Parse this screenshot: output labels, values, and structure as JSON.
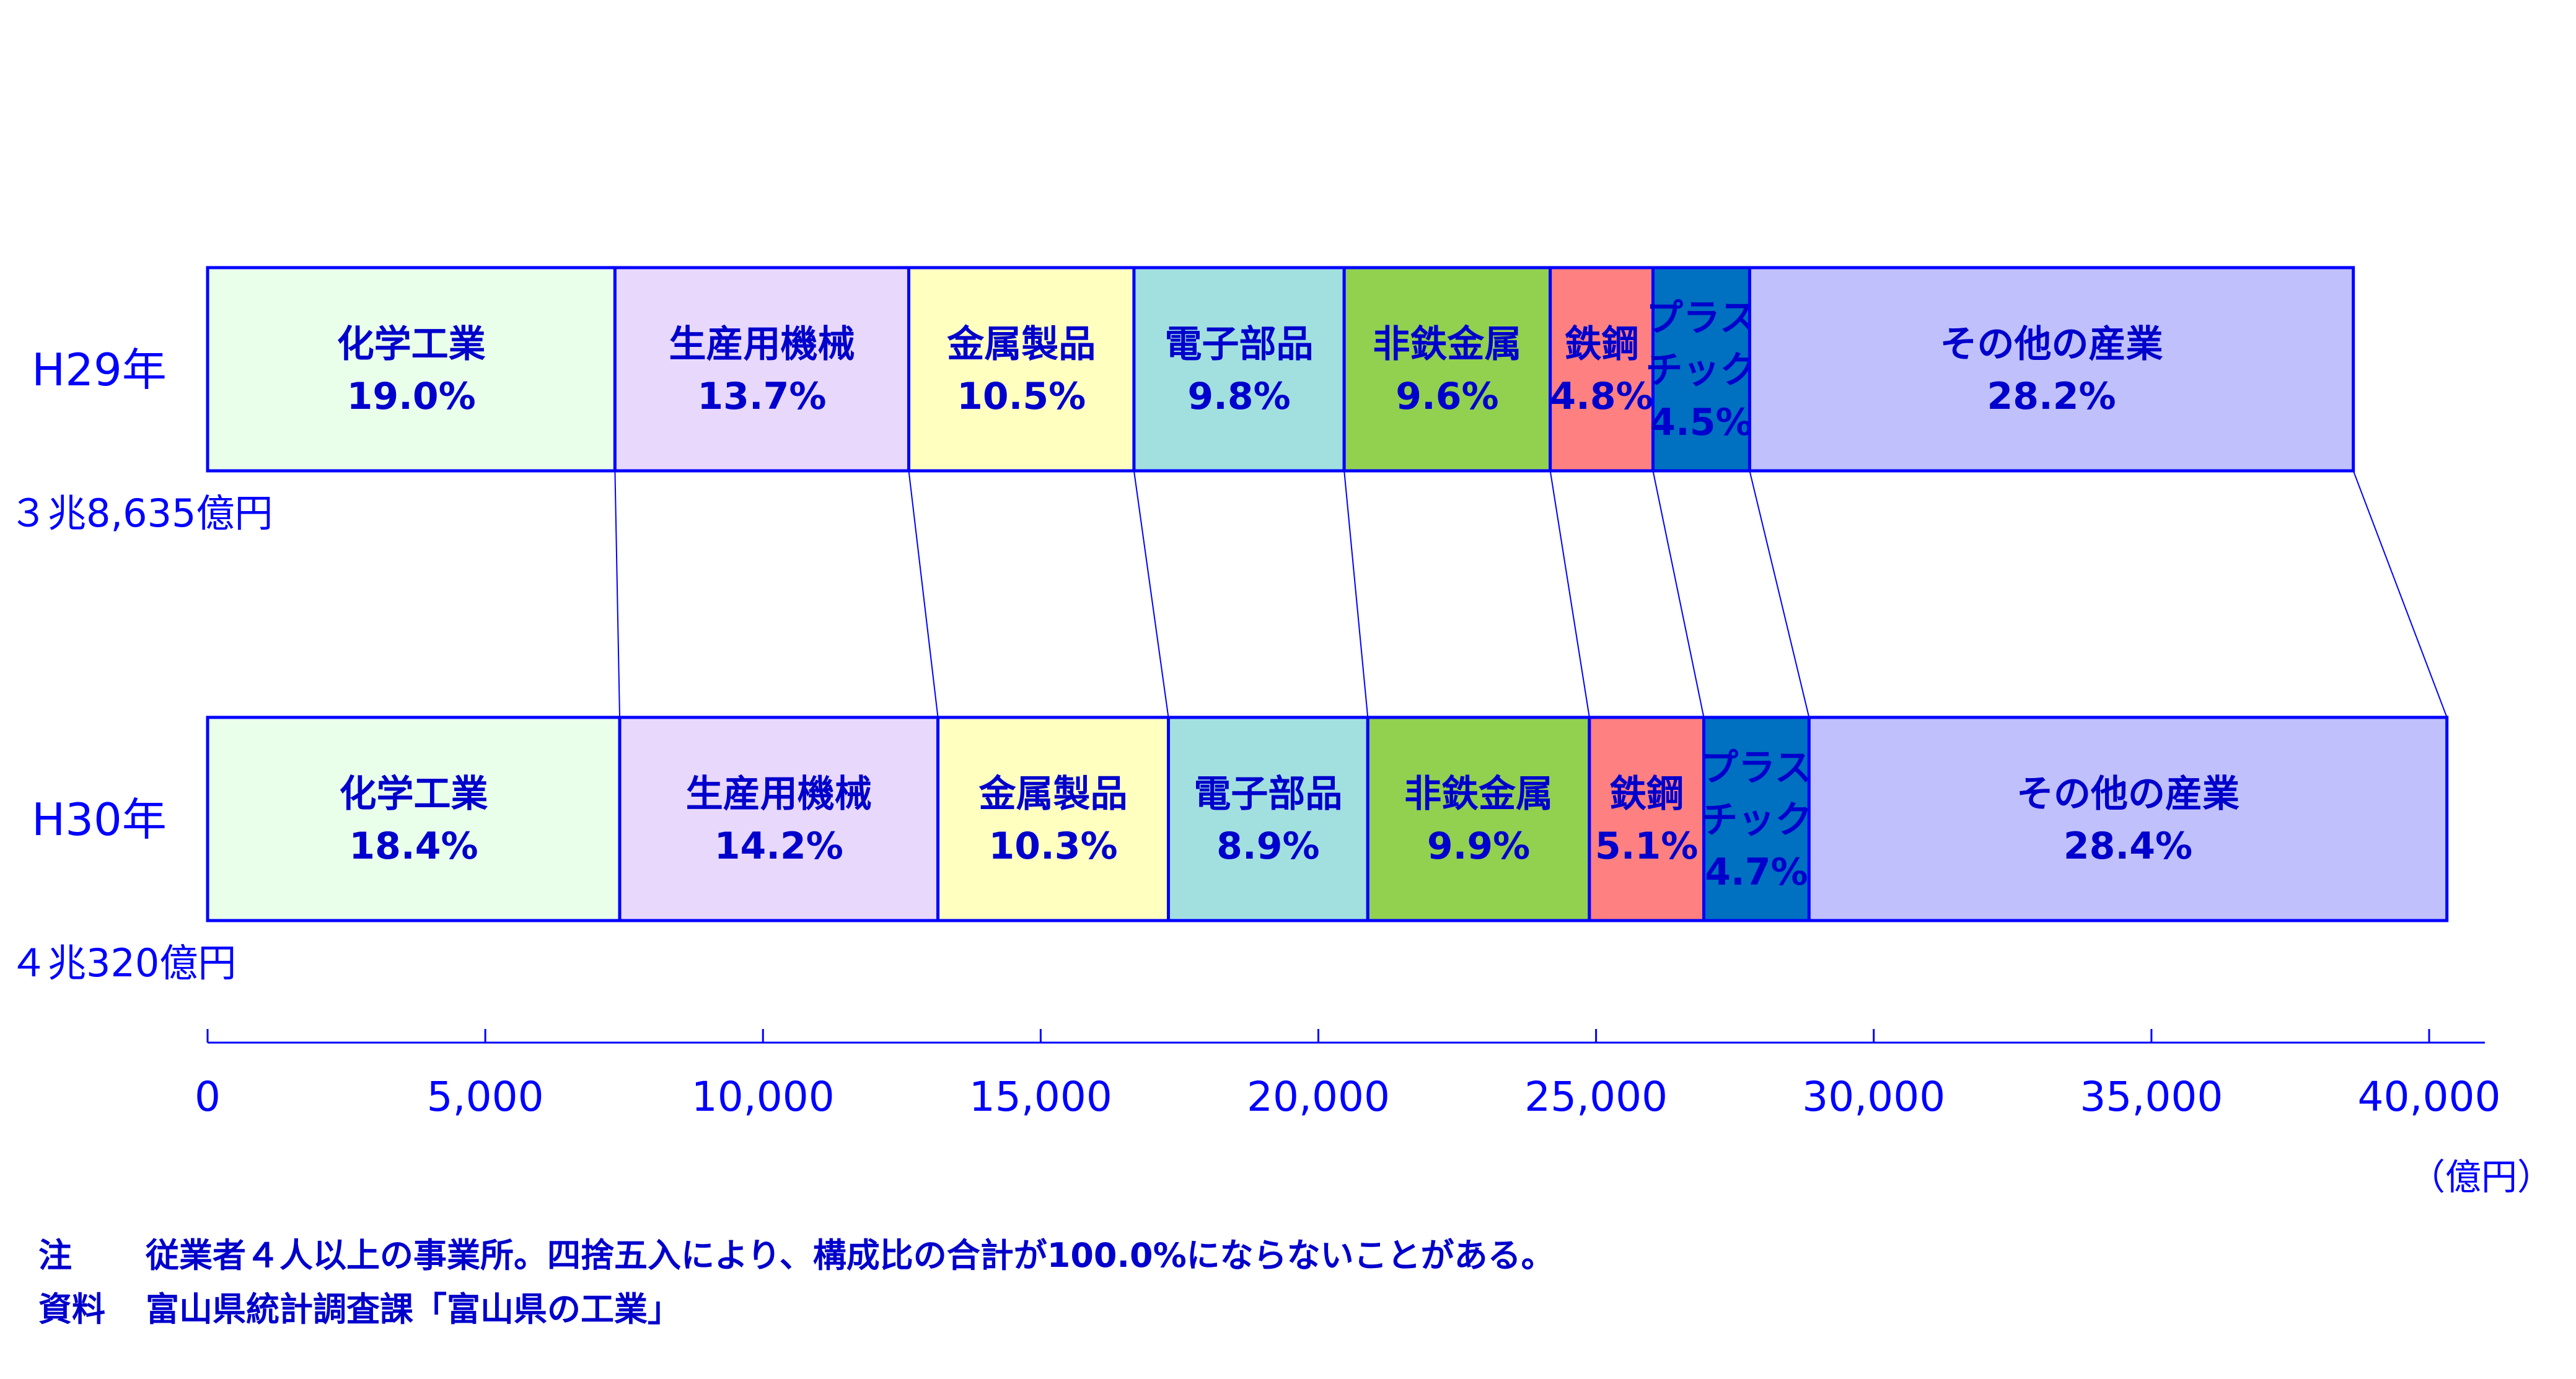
{
  "chart_data": {
    "type": "bar",
    "orientation": "horizontal-stacked",
    "unit": "（億円）",
    "xlim": [
      0,
      40000
    ],
    "x_ticks": [
      0,
      5000,
      10000,
      15000,
      20000,
      25000,
      30000,
      35000,
      40000
    ],
    "x_tick_labels": [
      "0",
      "5,000",
      "10,000",
      "15,000",
      "20,000",
      "25,000",
      "30,000",
      "35,000",
      "40,000"
    ],
    "categories": [
      "化学工業",
      "生産用機械",
      "金属製品",
      "電子部品",
      "非鉄金属",
      "鉄鋼",
      "プラスチック",
      "その他の産業"
    ],
    "category_label_lines": [
      [
        "化学工業"
      ],
      [
        "生産用機械"
      ],
      [
        "金属製品"
      ],
      [
        "電子部品"
      ],
      [
        "非鉄金属"
      ],
      [
        "鉄鋼"
      ],
      [
        "プラス",
        "チック"
      ],
      [
        "その他の産業"
      ]
    ],
    "colors": [
      "#eaffea",
      "#e8d8fc",
      "#ffffc0",
      "#a2e0e0",
      "#92d050",
      "#ff8080",
      "#0070c0",
      "#c0c0fc"
    ],
    "series": [
      {
        "name": "H29年",
        "total_label": "３兆8,635億円",
        "total": 38635,
        "share_labels": [
          "19.0%",
          "13.7%",
          "10.5%",
          "9.8%",
          "9.6%",
          "4.8%",
          "4.5%",
          "28.2%"
        ],
        "values": [
          7335,
          5290,
          4055,
          3785,
          3710,
          1850,
          1740,
          10870
        ]
      },
      {
        "name": "H30年",
        "total_label": "４兆320億円",
        "total": 40320,
        "share_labels": [
          "18.4%",
          "14.2%",
          "10.3%",
          "8.9%",
          "9.9%",
          "5.1%",
          "4.7%",
          "28.4%"
        ],
        "values": [
          7420,
          5730,
          4150,
          3590,
          3990,
          2060,
          1895,
          11485
        ]
      }
    ],
    "connector_lines": true
  },
  "notes": [
    {
      "head": "注",
      "text": "従業者４人以上の事業所。四捨五入により、構成比の合計が100.0%にならないことがある。"
    },
    {
      "head": "資料",
      "text": "富山県統計調査課「富山県の工業」"
    }
  ]
}
